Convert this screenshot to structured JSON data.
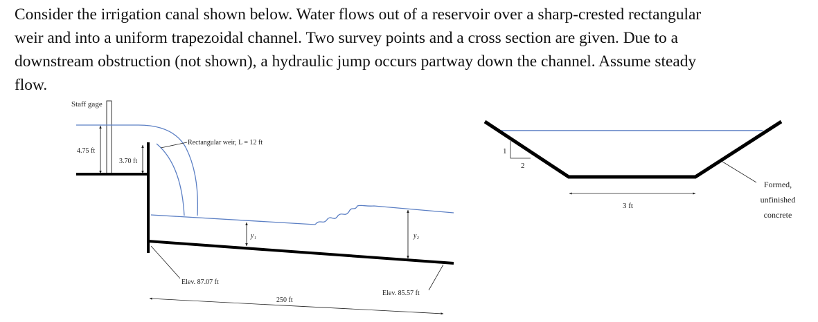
{
  "problem": {
    "lines": [
      "Consider the irrigation canal shown below. Water flows out of a reservoir over a sharp-crested rectangular",
      "weir and into a uniform trapezoidal channel. Two survey points and a cross section are given. Due to a",
      "downstream obstruction (not shown), a hydraulic jump occurs partway down the channel. Assume steady",
      "flow."
    ]
  },
  "profile": {
    "staff_gage": "Staff gage",
    "head_total": "4.75 ft",
    "weir_height": "3.70 ft",
    "weir": "Rectangular weir, L = 12 ft",
    "depth1": "y₁",
    "depth2": "y₂",
    "elev_upstream": "Elev. 87.07 ft",
    "elev_downstream": "Elev. 85.57 ft",
    "length": "250 ft"
  },
  "section": {
    "slope_rise": "1",
    "slope_run": "2",
    "bottom_width": "3 ft",
    "lining_lines": [
      "Formed,",
      "unfinished",
      "concrete"
    ]
  },
  "colors": {
    "text": "#111111",
    "water": "#5b7fc4",
    "structure": "#000000"
  }
}
